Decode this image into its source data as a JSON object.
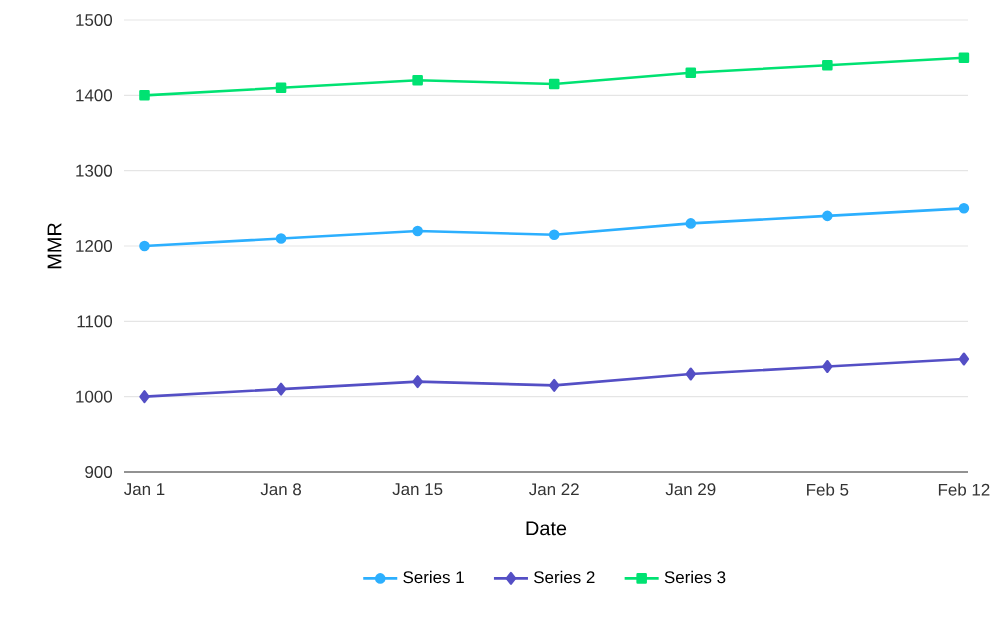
{
  "chart_data": {
    "type": "line",
    "xlabel": "Date",
    "ylabel": "MMR",
    "categories": [
      "Jan 1",
      "Jan 8",
      "Jan 15",
      "Jan 22",
      "Jan 29",
      "Feb 5",
      "Feb 12"
    ],
    "series": [
      {
        "name": "Series 1",
        "color": "#2caffe",
        "marker": "circle",
        "values": [
          1200,
          1210,
          1220,
          1215,
          1230,
          1240,
          1250
        ]
      },
      {
        "name": "Series 2",
        "color": "#544fc5",
        "marker": "diamond",
        "values": [
          1000,
          1010,
          1020,
          1015,
          1030,
          1040,
          1050
        ]
      },
      {
        "name": "Series 3",
        "color": "#00e272",
        "marker": "square",
        "values": [
          1400,
          1410,
          1420,
          1415,
          1430,
          1440,
          1450
        ]
      }
    ],
    "ylim": [
      900,
      1500
    ],
    "yticks": [
      900,
      1000,
      1100,
      1200,
      1300,
      1400,
      1500
    ],
    "grid": "y",
    "legend": "bottom",
    "line_style": "solid"
  }
}
